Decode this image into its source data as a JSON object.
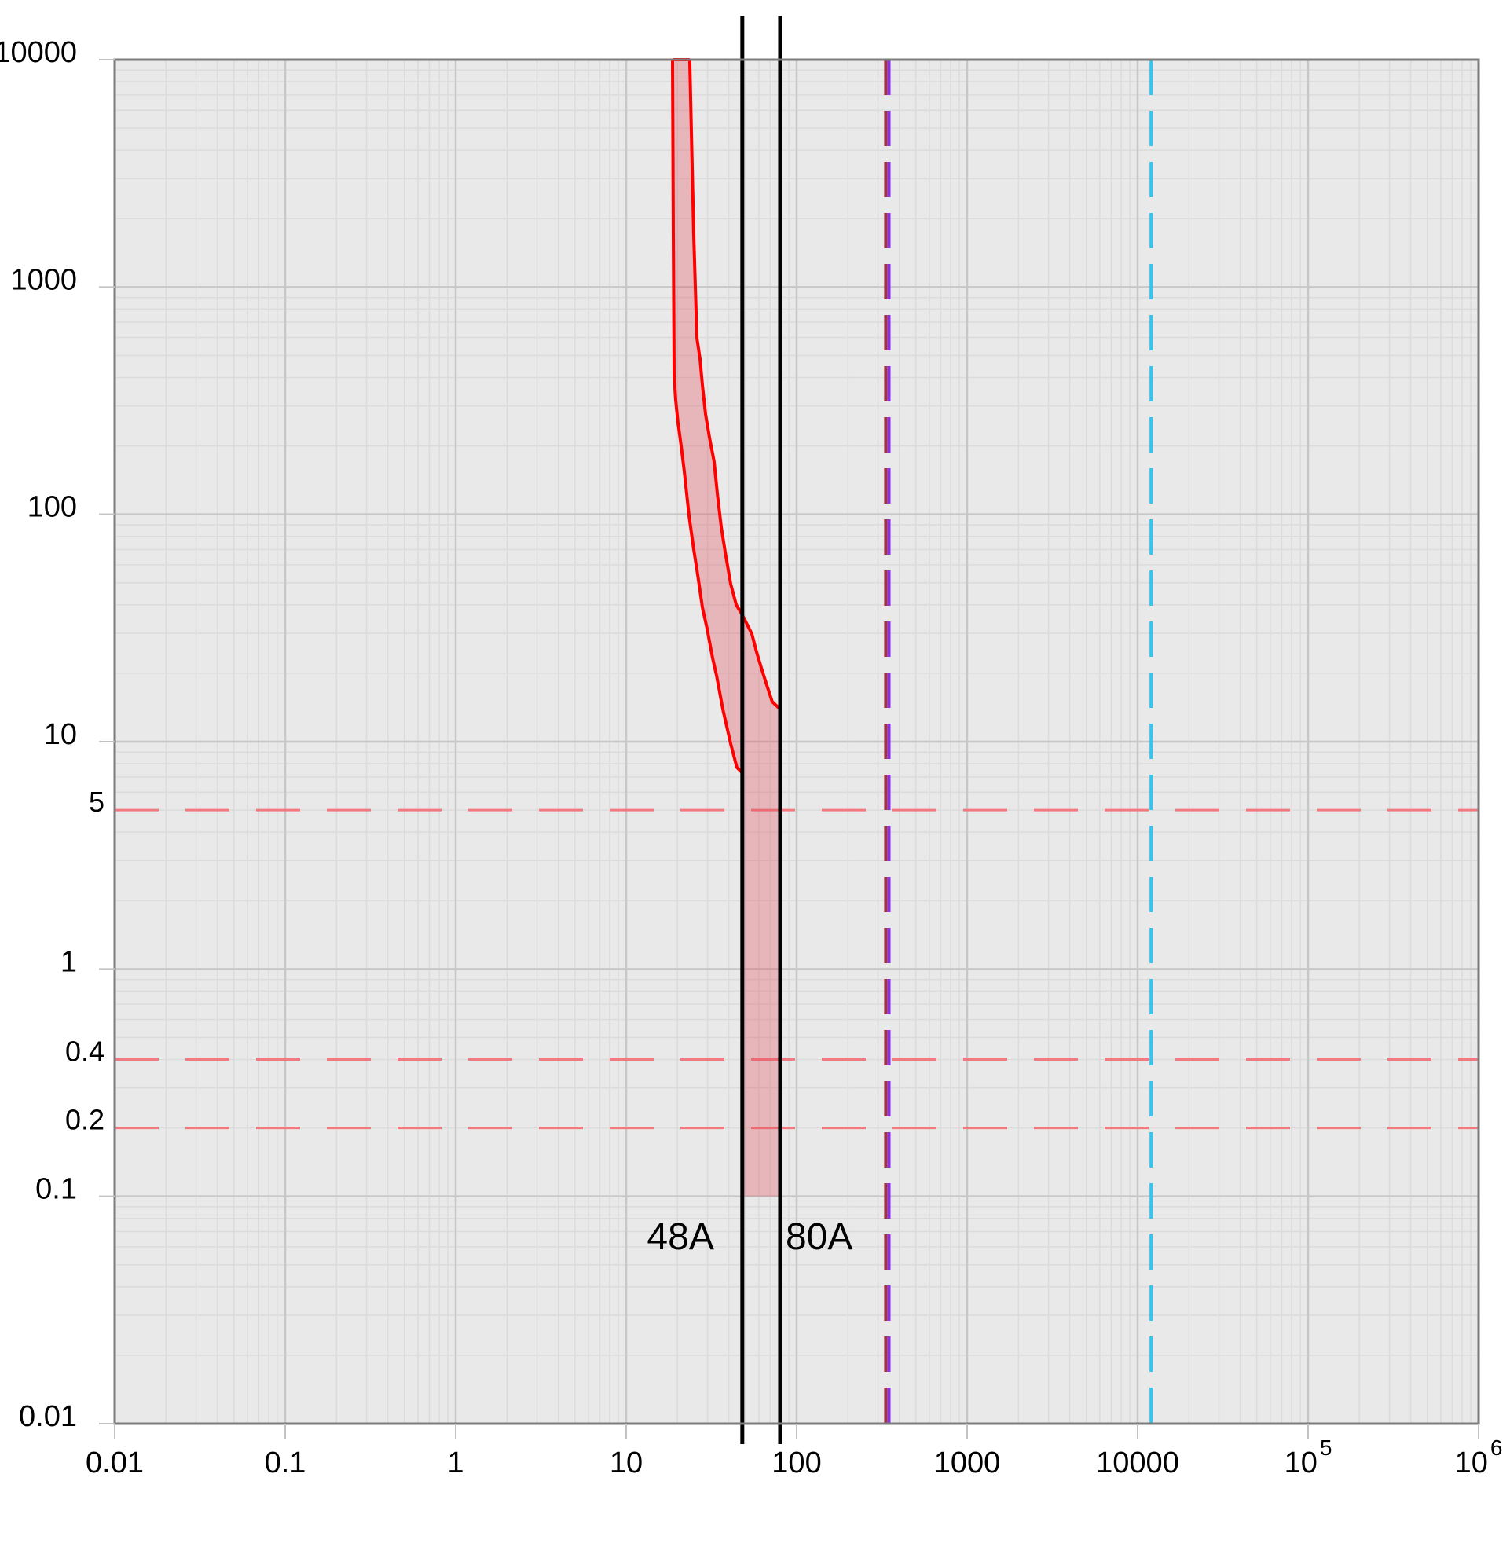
{
  "chart_data": {
    "type": "area",
    "title": "",
    "description": "Time-current trip characteristic band on log-log grid with pickup limit lines",
    "x_axis": {
      "scale": "log",
      "min": 0.01,
      "max": 1000000,
      "tick_values": [
        0.01,
        0.1,
        1,
        10,
        100,
        1000,
        10000,
        100000,
        1000000
      ],
      "ticks": [
        {
          "text": "0.01"
        },
        {
          "text": "0.1"
        },
        {
          "text": "1"
        },
        {
          "text": "10"
        },
        {
          "text": "100"
        },
        {
          "text": "1000"
        },
        {
          "text": "10000"
        },
        {
          "text": "10",
          "sup": "5"
        },
        {
          "text": "10",
          "sup": "6"
        }
      ]
    },
    "y_axis": {
      "scale": "log",
      "min": 0.01,
      "max": 10000,
      "tick_values": [
        10000,
        1000,
        100,
        10,
        1,
        0.1,
        0.01
      ],
      "ticks": [
        {
          "text": "10000"
        },
        {
          "text": "1000"
        },
        {
          "text": "100"
        },
        {
          "text": "10"
        },
        {
          "text": "1"
        },
        {
          "text": "0.1"
        },
        {
          "text": "0.01"
        }
      ]
    },
    "trip_band": {
      "fill_color": "rgba(225,75,90,0.32)",
      "stroke_color": "#ff0000",
      "stroke_width": 4,
      "band_min_time_s": 0.1,
      "left_limit_A": 48,
      "right_limit_A": 80,
      "left_boundary": [
        [
          18.7,
          10000
        ],
        [
          18.9,
          1680
        ],
        [
          19.1,
          411
        ],
        [
          19.5,
          321
        ],
        [
          20.1,
          255
        ],
        [
          21.0,
          201
        ],
        [
          21.9,
          155
        ],
        [
          23.4,
          98
        ],
        [
          24.9,
          70
        ],
        [
          26.3,
          54
        ],
        [
          28.0,
          39
        ],
        [
          29.8,
          31.5
        ],
        [
          32.1,
          23.4
        ],
        [
          33.9,
          19.5
        ],
        [
          36.9,
          13.9
        ],
        [
          41.0,
          9.8
        ],
        [
          44.6,
          7.7
        ],
        [
          48.0,
          7.3
        ]
      ],
      "right_boundary": [
        [
          23.6,
          10000
        ],
        [
          24.9,
          1680
        ],
        [
          26.0,
          598
        ],
        [
          27.1,
          482
        ],
        [
          28.0,
          371
        ],
        [
          29.2,
          276
        ],
        [
          30.8,
          218
        ],
        [
          32.8,
          171
        ],
        [
          34.3,
          122
        ],
        [
          36.1,
          88
        ],
        [
          38.1,
          68
        ],
        [
          41.0,
          49.5
        ],
        [
          44.2,
          40
        ],
        [
          48.1,
          36
        ],
        [
          54.6,
          29.8
        ],
        [
          58.2,
          24.8
        ],
        [
          62.7,
          20.6
        ],
        [
          67.5,
          17.3
        ],
        [
          71.9,
          15.0
        ],
        [
          80.0,
          13.9
        ]
      ]
    },
    "vertical_lines": [
      {
        "label": "48A",
        "amps": 48,
        "color": "#000000",
        "style": "solid",
        "width": 5,
        "label_side": "left"
      },
      {
        "label": "80A",
        "amps": 80,
        "color": "#000000",
        "style": "solid",
        "width": 5,
        "label_side": "right"
      },
      {
        "label": "",
        "amps": 333,
        "color": "#9e3339",
        "style": "dashed",
        "width": 4,
        "label_side": "none"
      },
      {
        "label": "",
        "amps": 348,
        "color": "#8b2fe8",
        "style": "dashed",
        "width": 4,
        "label_side": "none"
      },
      {
        "label": "",
        "amps": 12000,
        "color": "#2ec6f2",
        "style": "dashed",
        "width": 4,
        "label_side": "none"
      }
    ],
    "horizontal_lines": [
      {
        "label": "5",
        "seconds": 5,
        "color": "#f2797d",
        "style": "dashed",
        "width": 3
      },
      {
        "label": "0.4",
        "seconds": 0.4,
        "color": "#f2797d",
        "style": "dashed",
        "width": 3
      },
      {
        "label": "0.2",
        "seconds": 0.2,
        "color": "#f2797d",
        "style": "dashed",
        "width": 3
      }
    ],
    "grid": {
      "background": "#e9e9e9",
      "minor_color": "#dbdbdb",
      "major_color": "#c7c7c7",
      "frame_color": "#7c7c7c",
      "tick_color": "#c2c2c2",
      "label_color": "#000000"
    }
  }
}
